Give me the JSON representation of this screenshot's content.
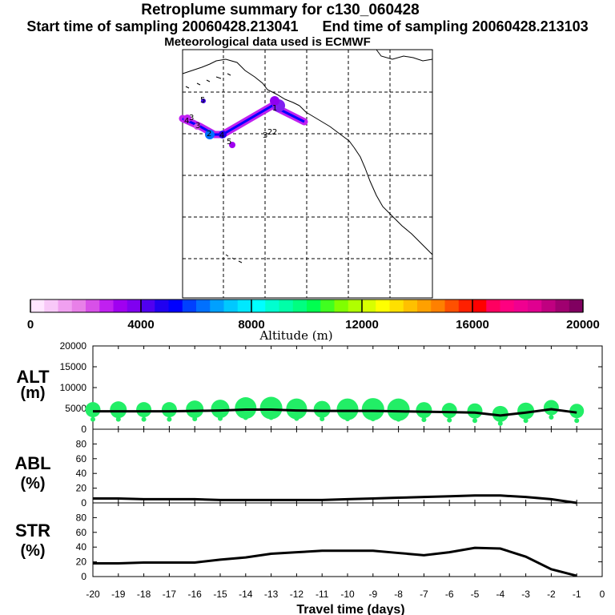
{
  "titles": {
    "line1": "Retroplume summary for c130_060428",
    "start": "Start time of sampling 20060428.213041",
    "end": "End time of sampling 20060428.213103",
    "line3": "Meteorological data used is ECMWF"
  },
  "colors": {
    "track": "#0000ff",
    "bubbles": "#22ee66",
    "line": "#000000"
  },
  "map": {
    "labels": [
      {
        "text": "1"
      },
      {
        "text": "2"
      },
      {
        "text": "3"
      },
      {
        "text": "4"
      },
      {
        "text": "5"
      },
      {
        "text": "3"
      },
      {
        "text": "4"
      },
      {
        "text": "3"
      },
      {
        "text": "2"
      },
      {
        "text": "2"
      },
      {
        "text": "5"
      }
    ]
  },
  "colorbar": {
    "xlabel": "Altitude (m)",
    "ticks": [
      "0",
      "4000",
      "8000",
      "12000",
      "16000",
      "20000"
    ],
    "colors": [
      "#ffe6ff",
      "#f8c8f8",
      "#f0a0f0",
      "#e880e8",
      "#d850e8",
      "#c020f0",
      "#a000f0",
      "#8000f0",
      "#5000f0",
      "#2000f0",
      "#0000ff",
      "#0040ff",
      "#0070ff",
      "#00a0ff",
      "#00c8ff",
      "#00e8ff",
      "#00ffff",
      "#00ffd0",
      "#00ffa8",
      "#00ff80",
      "#00ff50",
      "#40ff20",
      "#80ff00",
      "#b0ff00",
      "#d8ff00",
      "#ffff00",
      "#ffe000",
      "#ffc000",
      "#ffa000",
      "#ff8000",
      "#ff5000",
      "#ff2000",
      "#ff0000",
      "#ff0060",
      "#ff0080",
      "#f00090",
      "#e00090",
      "#c00080",
      "#a00070",
      "#800060"
    ]
  },
  "chart_data": [
    {
      "type": "scatter",
      "panel": "ALT",
      "ylabel": [
        "ALT",
        "(m)"
      ],
      "ylim": [
        0,
        20000
      ],
      "yticks": [
        "0",
        "5000",
        "10000",
        "15000",
        "20000"
      ],
      "x": [
        -20,
        -19,
        -18,
        -17,
        -16,
        -15,
        -14,
        -13,
        -12,
        -11,
        -10,
        -9,
        -8,
        -7,
        -6,
        -5,
        -4,
        -3,
        -2,
        -1
      ],
      "median_altitude": [
        4300,
        4300,
        4300,
        4300,
        4400,
        4500,
        4700,
        4700,
        4500,
        4400,
        4400,
        4400,
        4300,
        4200,
        4100,
        4000,
        3300,
        4000,
        4800,
        4000
      ],
      "bubble_size": [
        0.45,
        0.55,
        0.45,
        0.45,
        0.6,
        0.65,
        0.85,
        0.9,
        0.8,
        0.55,
        0.85,
        0.9,
        0.9,
        0.5,
        0.45,
        0.45,
        0.5,
        0.55,
        0.45,
        0.4
      ]
    },
    {
      "type": "line",
      "panel": "ABL",
      "ylabel": [
        "ABL",
        "(%)"
      ],
      "ylim": [
        0,
        100
      ],
      "yticks": [
        "0",
        "20",
        "40",
        "60",
        "80"
      ],
      "x": [
        -20,
        -19,
        -18,
        -17,
        -16,
        -15,
        -14,
        -13,
        -12,
        -11,
        -10,
        -9,
        -8,
        -7,
        -6,
        -5,
        -4,
        -3,
        -2,
        -1
      ],
      "values": [
        6,
        6,
        5,
        5,
        5,
        4,
        4,
        4,
        4,
        4,
        5,
        6,
        7,
        8,
        9,
        10,
        10,
        8,
        5,
        0
      ]
    },
    {
      "type": "line",
      "panel": "STR",
      "ylabel": [
        "STR",
        "(%)"
      ],
      "ylim": [
        0,
        100
      ],
      "yticks": [
        "0",
        "20",
        "40",
        "60",
        "80"
      ],
      "x": [
        -20,
        -19,
        -18,
        -17,
        -16,
        -15,
        -14,
        -13,
        -12,
        -11,
        -10,
        -9,
        -8,
        -7,
        -6,
        -5,
        -4,
        -3,
        -2,
        -1
      ],
      "values": [
        18,
        18,
        19,
        19,
        19,
        23,
        26,
        31,
        33,
        35,
        35,
        35,
        32,
        29,
        33,
        39,
        38,
        27,
        10,
        1
      ],
      "xlabel": "Travel time (days)",
      "xticks": [
        "-20",
        "-19",
        "-18",
        "-17",
        "-16",
        "-15",
        "-14",
        "-13",
        "-12",
        "-11",
        "-10",
        "-9",
        "-8",
        "-7",
        "-6",
        "-5",
        "-4",
        "-3",
        "-2",
        "-1",
        "0"
      ]
    }
  ]
}
